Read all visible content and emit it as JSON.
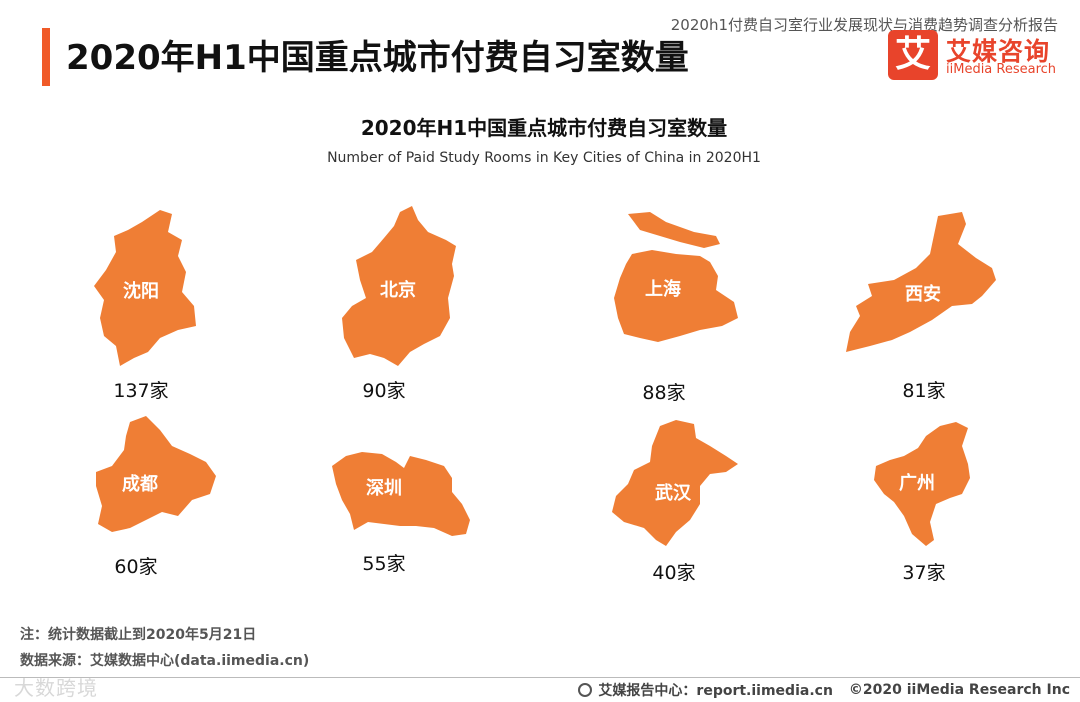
{
  "header": {
    "report_name": "2020h1付费自习室行业发展现状与消费趋势调查分析报告",
    "page_title": "2020年H1中国重点城市付费自习室数量"
  },
  "logo": {
    "mark": "艾",
    "name_cn": "艾媒咨询",
    "name_en": "iiMedia Research"
  },
  "chart_data": {
    "type": "other",
    "title": "2020年H1中国重点城市付费自习室数量",
    "subtitle": "Number of Paid Study Rooms in Key Cities of China in 2020H1",
    "unit": "家",
    "fill_color": "#ef7e35",
    "categories": [
      "沈阳",
      "北京",
      "上海",
      "西安",
      "成都",
      "深圳",
      "武汉",
      "广州"
    ],
    "values": [
      137,
      90,
      88,
      81,
      60,
      55,
      40,
      37
    ]
  },
  "notes": {
    "note": "注：统计数据截止到2020年5月21日",
    "source": "数据来源：艾媒数据中心(data.iimedia.cn)"
  },
  "footer": {
    "report_center": "艾媒报告中心：report.iimedia.cn",
    "copyright": "©2020  iiMedia Research  Inc"
  },
  "watermark": "大数跨境"
}
